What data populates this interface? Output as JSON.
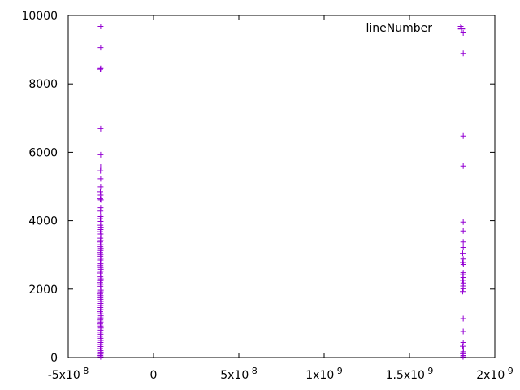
{
  "chart_data": {
    "type": "scatter",
    "title": "",
    "xlabel": "",
    "ylabel": "",
    "xlim": [
      -500000000,
      2000000000
    ],
    "ylim": [
      0,
      10000
    ],
    "grid": false,
    "legend_position": "top-right",
    "marker": "plus",
    "x_ticks": [
      {
        "value": -500000000,
        "mantissa": "-5x10",
        "exp": "8"
      },
      {
        "value": 0,
        "mantissa": "0",
        "exp": ""
      },
      {
        "value": 500000000,
        "mantissa": "5x10",
        "exp": "8"
      },
      {
        "value": 1000000000,
        "mantissa": "1x10",
        "exp": "9"
      },
      {
        "value": 1500000000,
        "mantissa": "1.5x10",
        "exp": "9"
      },
      {
        "value": 2000000000,
        "mantissa": "2x10",
        "exp": "9"
      }
    ],
    "y_ticks": [
      {
        "value": 0,
        "label": "0"
      },
      {
        "value": 2000,
        "label": "2000"
      },
      {
        "value": 4000,
        "label": "4000"
      },
      {
        "value": 6000,
        "label": "6000"
      },
      {
        "value": 8000,
        "label": "8000"
      },
      {
        "value": 10000,
        "label": "10000"
      }
    ],
    "series": [
      {
        "name": "lineNumber",
        "color": "#9400d3",
        "points": [
          [
            -310000000,
            9680
          ],
          [
            -310000000,
            9060
          ],
          [
            -310000000,
            8450
          ],
          [
            -312000000,
            8430
          ],
          [
            -310000000,
            6690
          ],
          [
            -310000000,
            5930
          ],
          [
            -310000000,
            5570
          ],
          [
            -311000000,
            5460
          ],
          [
            -310000000,
            5230
          ],
          [
            -310000000,
            4990
          ],
          [
            -312000000,
            4850
          ],
          [
            -310000000,
            4750
          ],
          [
            -312000000,
            4640
          ],
          [
            -309000000,
            4610
          ],
          [
            -310000000,
            4380
          ],
          [
            -311000000,
            4280
          ],
          [
            -310000000,
            4120
          ],
          [
            -312000000,
            4060
          ],
          [
            -310000000,
            3980
          ],
          [
            -311000000,
            3870
          ],
          [
            -309000000,
            3810
          ],
          [
            -310000000,
            3740
          ],
          [
            -312000000,
            3680
          ],
          [
            -310000000,
            3610
          ],
          [
            -309000000,
            3550
          ],
          [
            -311000000,
            3490
          ],
          [
            -310000000,
            3420
          ],
          [
            -312000000,
            3380
          ],
          [
            -310000000,
            3300
          ],
          [
            -311000000,
            3240
          ],
          [
            -309000000,
            3190
          ],
          [
            -310000000,
            3130
          ],
          [
            -312000000,
            3070
          ],
          [
            -310000000,
            3010
          ],
          [
            -311000000,
            2960
          ],
          [
            -309000000,
            2900
          ],
          [
            -310000000,
            2850
          ],
          [
            -312000000,
            2790
          ],
          [
            -310000000,
            2740
          ],
          [
            -311000000,
            2690
          ],
          [
            -310000000,
            2630
          ],
          [
            -309000000,
            2580
          ],
          [
            -310000000,
            2520
          ],
          [
            -312000000,
            2470
          ],
          [
            -310000000,
            2410
          ],
          [
            -311000000,
            2360
          ],
          [
            -309000000,
            2300
          ],
          [
            -310000000,
            2250
          ],
          [
            -312000000,
            2190
          ],
          [
            -310000000,
            2140
          ],
          [
            -311000000,
            2080
          ],
          [
            -310000000,
            2030
          ],
          [
            -309000000,
            1970
          ],
          [
            -310000000,
            1920
          ],
          [
            -312000000,
            1860
          ],
          [
            -310000000,
            1810
          ],
          [
            -311000000,
            1750
          ],
          [
            -310000000,
            1700
          ],
          [
            -309000000,
            1640
          ],
          [
            -310000000,
            1580
          ],
          [
            -310000000,
            1520
          ],
          [
            -311000000,
            1460
          ],
          [
            -310000000,
            1400
          ],
          [
            -312000000,
            1340
          ],
          [
            -310000000,
            1280
          ],
          [
            -309000000,
            1220
          ],
          [
            -310000000,
            1160
          ],
          [
            -311000000,
            1100
          ],
          [
            -310000000,
            1040
          ],
          [
            -312000000,
            980
          ],
          [
            -310000000,
            920
          ],
          [
            -309000000,
            860
          ],
          [
            -310000000,
            800
          ],
          [
            -311000000,
            740
          ],
          [
            -310000000,
            680
          ],
          [
            -312000000,
            620
          ],
          [
            -310000000,
            560
          ],
          [
            -309000000,
            500
          ],
          [
            -310000000,
            440
          ],
          [
            -311000000,
            380
          ],
          [
            -310000000,
            320
          ],
          [
            -312000000,
            260
          ],
          [
            -310000000,
            200
          ],
          [
            -309000000,
            150
          ],
          [
            -310000000,
            100
          ],
          [
            -311000000,
            60
          ],
          [
            -310000000,
            20
          ],
          [
            1800000000,
            9680
          ],
          [
            1815000000,
            9490
          ],
          [
            1815000000,
            8890
          ],
          [
            1815000000,
            6480
          ],
          [
            1815000000,
            5600
          ],
          [
            1815000000,
            3960
          ],
          [
            1815000000,
            3700
          ],
          [
            1815000000,
            3380
          ],
          [
            1815000000,
            3220
          ],
          [
            1812000000,
            3050
          ],
          [
            1815000000,
            2880
          ],
          [
            1812000000,
            2780
          ],
          [
            1816000000,
            2720
          ],
          [
            1815000000,
            2480
          ],
          [
            1813000000,
            2420
          ],
          [
            1815000000,
            2340
          ],
          [
            1812000000,
            2260
          ],
          [
            1816000000,
            2180
          ],
          [
            1814000000,
            2090
          ],
          [
            1815000000,
            2010
          ],
          [
            1812000000,
            1930
          ],
          [
            1815000000,
            1140
          ],
          [
            1815000000,
            760
          ],
          [
            1815000000,
            440
          ],
          [
            1812000000,
            330
          ],
          [
            1816000000,
            250
          ],
          [
            1815000000,
            170
          ],
          [
            1813000000,
            110
          ],
          [
            1815000000,
            60
          ],
          [
            1814000000,
            20
          ]
        ]
      }
    ]
  }
}
